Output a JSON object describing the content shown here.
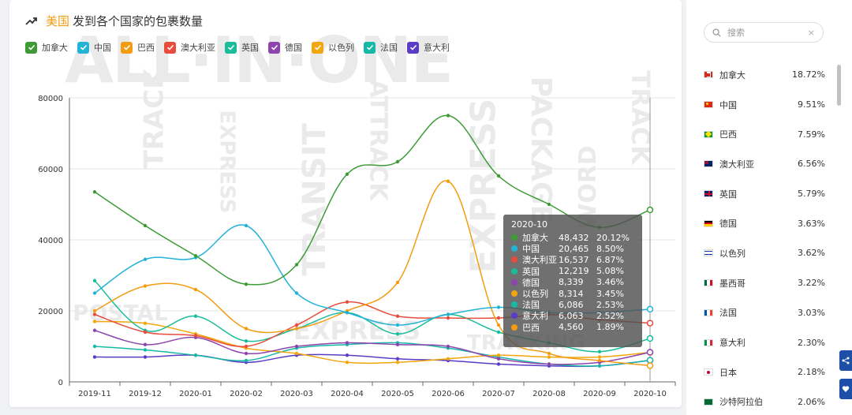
{
  "header": {
    "country": "美国",
    "title": "发到各个国家的包裹数量",
    "trend_icon": "trend-icon"
  },
  "colors": {
    "canada": "#3d9b35",
    "china": "#22b3d6",
    "brazil": "#f39c12",
    "australia": "#e74c3c",
    "uk": "#1abc9c",
    "germany": "#8e44ad",
    "israel": "#f1a60d",
    "france": "#16b8a6",
    "italy": "#5b3cc4"
  },
  "legend": [
    {
      "label": "加拿大",
      "color": "#3d9b35"
    },
    {
      "label": "中国",
      "color": "#22b3d6"
    },
    {
      "label": "巴西",
      "color": "#f39c12"
    },
    {
      "label": "澳大利亚",
      "color": "#e74c3c"
    },
    {
      "label": "英国",
      "color": "#1abc9c"
    },
    {
      "label": "德国",
      "color": "#8e44ad"
    },
    {
      "label": "以色列",
      "color": "#f1a60d"
    },
    {
      "label": "法国",
      "color": "#16b8a6"
    },
    {
      "label": "意大利",
      "color": "#5b3cc4"
    }
  ],
  "chart_data": {
    "type": "line",
    "categories": [
      "2019-11",
      "2019-12",
      "2020-01",
      "2020-02",
      "2020-03",
      "2020-04",
      "2020-05",
      "2020-06",
      "2020-07",
      "2020-08",
      "2020-09",
      "2020-10"
    ],
    "ylim": [
      0,
      80000
    ],
    "yticks": [
      "0",
      "20000",
      "40000",
      "60000",
      "80000"
    ],
    "grid": true,
    "series": [
      {
        "name": "加拿大",
        "color": "#3d9b35",
        "values": [
          53500,
          44000,
          35500,
          27500,
          33000,
          58500,
          62000,
          75000,
          58000,
          50000,
          43500,
          48432
        ]
      },
      {
        "name": "中国",
        "color": "#22b3d6",
        "values": [
          25000,
          34500,
          35000,
          44000,
          25000,
          19500,
          16000,
          19000,
          21000,
          19500,
          19500,
          20465
        ]
      },
      {
        "name": "巴西",
        "color": "#f39c12",
        "values": [
          20000,
          27000,
          26000,
          15000,
          15000,
          20000,
          28000,
          56500,
          16000,
          8000,
          6000,
          4560
        ]
      },
      {
        "name": "澳大利亚",
        "color": "#e74c3c",
        "values": [
          19000,
          14000,
          13000,
          10000,
          16000,
          22500,
          18500,
          18000,
          18000,
          19000,
          17500,
          16537
        ]
      },
      {
        "name": "英国",
        "color": "#1abc9c",
        "values": [
          28500,
          14500,
          18500,
          11500,
          15000,
          19500,
          13500,
          19000,
          14000,
          11000,
          8500,
          12219
        ]
      },
      {
        "name": "德国",
        "color": "#8e44ad",
        "values": [
          14500,
          10500,
          12500,
          8000,
          10000,
          11000,
          10500,
          10000,
          6500,
          5000,
          5500,
          8339
        ]
      },
      {
        "name": "以色列",
        "color": "#f1a60d",
        "values": [
          17000,
          16500,
          13500,
          9500,
          8000,
          5500,
          5500,
          6500,
          7500,
          7000,
          7000,
          8314
        ]
      },
      {
        "name": "法国",
        "color": "#16b8a6",
        "values": [
          10000,
          9000,
          7500,
          6000,
          9500,
          10500,
          11000,
          9500,
          7000,
          5000,
          4500,
          6086
        ]
      },
      {
        "name": "意大利",
        "color": "#5b3cc4",
        "values": [
          7000,
          7000,
          7500,
          5500,
          7500,
          7500,
          6500,
          6000,
          5000,
          4500,
          4500,
          6063
        ]
      }
    ]
  },
  "tooltip": {
    "title": "2020-10",
    "rows": [
      {
        "name": "加拿大",
        "value": "48,432",
        "pct": "20.12%",
        "color": "#3d9b35"
      },
      {
        "name": "中国",
        "value": "20,465",
        "pct": "8.50%",
        "color": "#22b3d6"
      },
      {
        "name": "澳大利亚",
        "value": "16,537",
        "pct": "6.87%",
        "color": "#e74c3c"
      },
      {
        "name": "英国",
        "value": "12,219",
        "pct": "5.08%",
        "color": "#1abc9c"
      },
      {
        "name": "德国",
        "value": "8,339",
        "pct": "3.46%",
        "color": "#8e44ad"
      },
      {
        "name": "以色列",
        "value": "8,314",
        "pct": "3.45%",
        "color": "#f1a60d"
      },
      {
        "name": "法国",
        "value": "6,086",
        "pct": "2.53%",
        "color": "#16b8a6"
      },
      {
        "name": "意大利",
        "value": "6,063",
        "pct": "2.52%",
        "color": "#5b3cc4"
      },
      {
        "name": "巴西",
        "value": "4,560",
        "pct": "1.89%",
        "color": "#f39c12"
      }
    ]
  },
  "search": {
    "placeholder": "搜索",
    "icon": "search-icon",
    "clear": "×"
  },
  "countries": [
    {
      "name": "加拿大",
      "pct": "18.72%",
      "flag": "ca"
    },
    {
      "name": "中国",
      "pct": "9.51%",
      "flag": "cn"
    },
    {
      "name": "巴西",
      "pct": "7.59%",
      "flag": "br"
    },
    {
      "name": "澳大利亚",
      "pct": "6.56%",
      "flag": "au"
    },
    {
      "name": "英国",
      "pct": "5.79%",
      "flag": "gb"
    },
    {
      "name": "德国",
      "pct": "3.63%",
      "flag": "de"
    },
    {
      "name": "以色列",
      "pct": "3.62%",
      "flag": "il"
    },
    {
      "name": "墨西哥",
      "pct": "3.22%",
      "flag": "mx"
    },
    {
      "name": "法国",
      "pct": "3.03%",
      "flag": "fr"
    },
    {
      "name": "意大利",
      "pct": "2.30%",
      "flag": "it"
    },
    {
      "name": "日本",
      "pct": "2.18%",
      "flag": "jp"
    },
    {
      "name": "沙特阿拉伯",
      "pct": "2.06%",
      "flag": "sa"
    }
  ],
  "float_buttons": [
    "share-icon",
    "heart-icon"
  ]
}
